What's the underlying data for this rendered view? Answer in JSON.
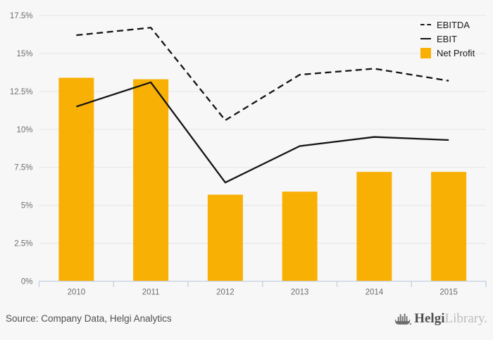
{
  "chart_data": {
    "type": "combo",
    "title": "",
    "categories": [
      "2010",
      "2011",
      "2012",
      "2013",
      "2014",
      "2015"
    ],
    "series": [
      {
        "name": "EBITDA",
        "type": "line",
        "line_style": "dashed",
        "color": "#141414",
        "values": [
          16.2,
          16.7,
          10.6,
          13.6,
          14.0,
          13.2
        ]
      },
      {
        "name": "EBIT",
        "type": "line",
        "line_style": "solid",
        "color": "#141414",
        "values": [
          11.5,
          13.1,
          6.5,
          8.9,
          9.5,
          9.3
        ]
      },
      {
        "name": "Net Profit",
        "type": "bar",
        "color": "#f9b005",
        "values": [
          13.4,
          13.3,
          5.7,
          5.9,
          7.2,
          7.2
        ]
      }
    ],
    "unit": "%",
    "ylim": [
      0,
      17.5
    ],
    "ytick_step": 2.5,
    "ytick_labels": [
      "0%",
      "2.5%",
      "5%",
      "7.5%",
      "10%",
      "12.5%",
      "15%",
      "17.5%"
    ],
    "xlabel": "",
    "ylabel": "",
    "grid": "horizontal",
    "legend_position": "top-right",
    "colors": {
      "grid": "#e5e5e5",
      "axis": "#c5cfde",
      "tick_label": "#6e6e6e",
      "background": "#f7f7f7"
    }
  },
  "footer": {
    "source": "Source: Company Data, Helgi Analytics",
    "logo_bold": "Helgi",
    "logo_light": "Library."
  }
}
